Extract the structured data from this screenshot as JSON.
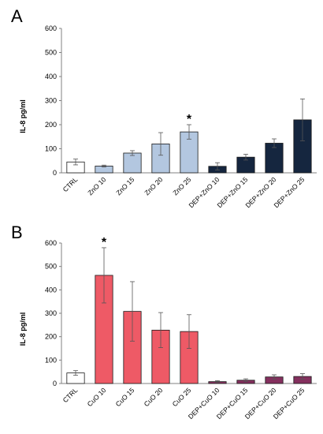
{
  "chart_data": [
    {
      "type": "bar",
      "panel": "A",
      "ylabel": "IL-8 pg/ml",
      "ylim": [
        0,
        600
      ],
      "yticks": [
        0,
        100,
        200,
        300,
        400,
        500,
        600
      ],
      "categories": [
        "CTRL",
        "ZnO 10",
        "ZnO 15",
        "ZnO 20",
        "ZnO 25",
        "DEP+ZnO 10",
        "DEP+ZnO 15",
        "DEP+ZnO 20",
        "DEP+ZnO 25"
      ],
      "values": [
        45,
        28,
        82,
        120,
        170,
        27,
        65,
        123,
        220
      ],
      "errors": [
        12,
        4,
        10,
        47,
        30,
        15,
        12,
        18,
        87
      ],
      "colors": [
        "#ffffff",
        "#b3c7e0",
        "#b3c7e0",
        "#b3c7e0",
        "#b3c7e0",
        "#15263f",
        "#15263f",
        "#15263f",
        "#15263f"
      ],
      "significant": [
        false,
        false,
        false,
        false,
        true,
        false,
        false,
        false,
        false
      ],
      "significance_mark": "*"
    },
    {
      "type": "bar",
      "panel": "B",
      "ylabel": "IL-8 pg/ml",
      "ylim": [
        0,
        600
      ],
      "yticks": [
        0,
        100,
        200,
        300,
        400,
        500,
        600
      ],
      "categories": [
        "CTRL",
        "CuO 10",
        "CuO 15",
        "CuO 20",
        "CuO 25",
        "DEP+CuO 10",
        "DEP+CuO 15",
        "DEP+CuO 20",
        "DEP+CuO 25"
      ],
      "values": [
        45,
        462,
        308,
        228,
        222,
        8,
        14,
        28,
        30
      ],
      "errors": [
        10,
        118,
        127,
        75,
        72,
        4,
        6,
        9,
        12
      ],
      "colors": [
        "#ffffff",
        "#ee5a66",
        "#ee5a66",
        "#ee5a66",
        "#ee5a66",
        "#84305e",
        "#84305e",
        "#84305e",
        "#84305e"
      ],
      "significant": [
        false,
        true,
        false,
        false,
        false,
        false,
        false,
        false,
        false
      ],
      "significance_mark": "*"
    }
  ],
  "panels": {
    "a_label": "A",
    "b_label": "B"
  }
}
